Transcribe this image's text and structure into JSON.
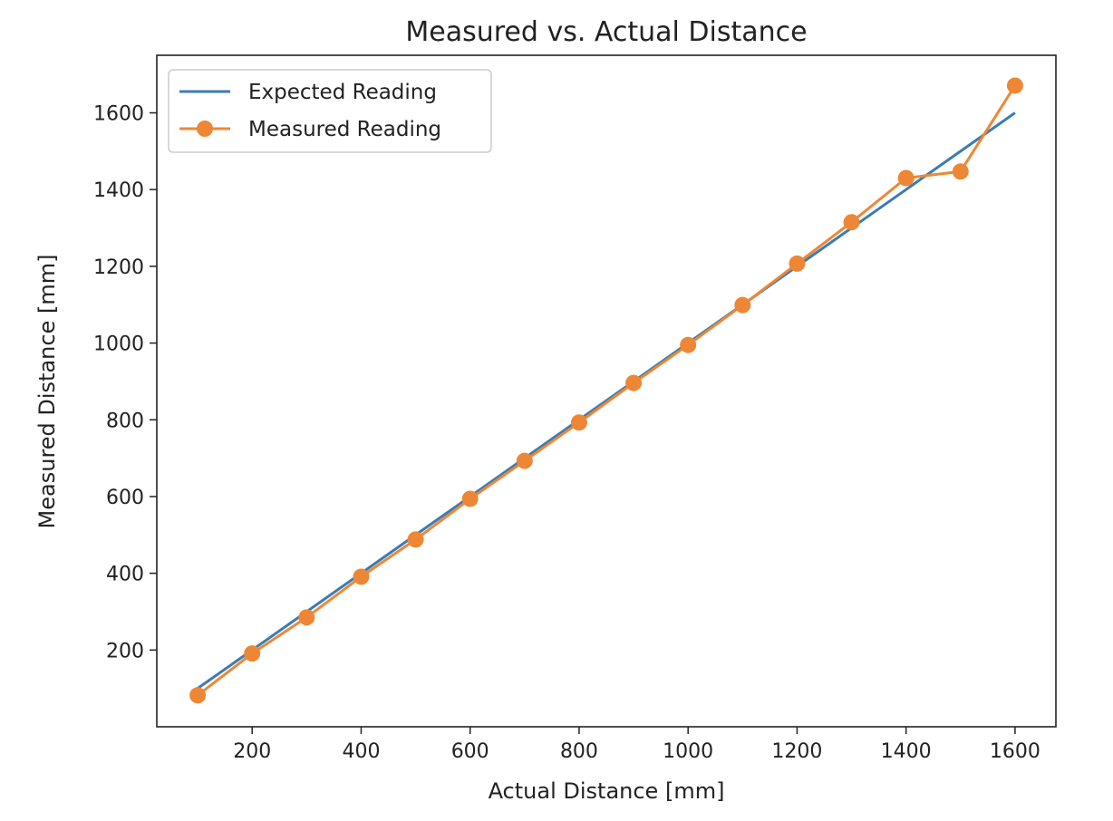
{
  "chart_data": {
    "type": "line",
    "title": "Measured vs. Actual Distance",
    "xlabel": "Actual Distance [mm]",
    "ylabel": "Measured Distance [mm]",
    "xlim": [
      25,
      1675
    ],
    "ylim": [
      0,
      1750
    ],
    "xticks": [
      200,
      400,
      600,
      800,
      1000,
      1200,
      1400,
      1600
    ],
    "yticks": [
      200,
      400,
      600,
      800,
      1000,
      1200,
      1400,
      1600
    ],
    "grid": false,
    "legend_position": "top-left",
    "x": [
      100,
      200,
      300,
      400,
      500,
      600,
      700,
      800,
      900,
      1000,
      1100,
      1200,
      1300,
      1400,
      1500,
      1600
    ],
    "series": [
      {
        "name": "Expected Reading",
        "color": "#3b7bb5",
        "marker": "none",
        "values": [
          100,
          200,
          300,
          400,
          500,
          600,
          700,
          800,
          900,
          1000,
          1100,
          1200,
          1300,
          1400,
          1500,
          1600
        ]
      },
      {
        "name": "Measured Reading",
        "color": "#ee8735",
        "marker": "circle",
        "values": [
          82,
          191,
          285,
          391,
          488,
          594,
          693,
          793,
          896,
          995,
          1099,
          1207,
          1315,
          1430,
          1447,
          1671
        ]
      }
    ]
  }
}
